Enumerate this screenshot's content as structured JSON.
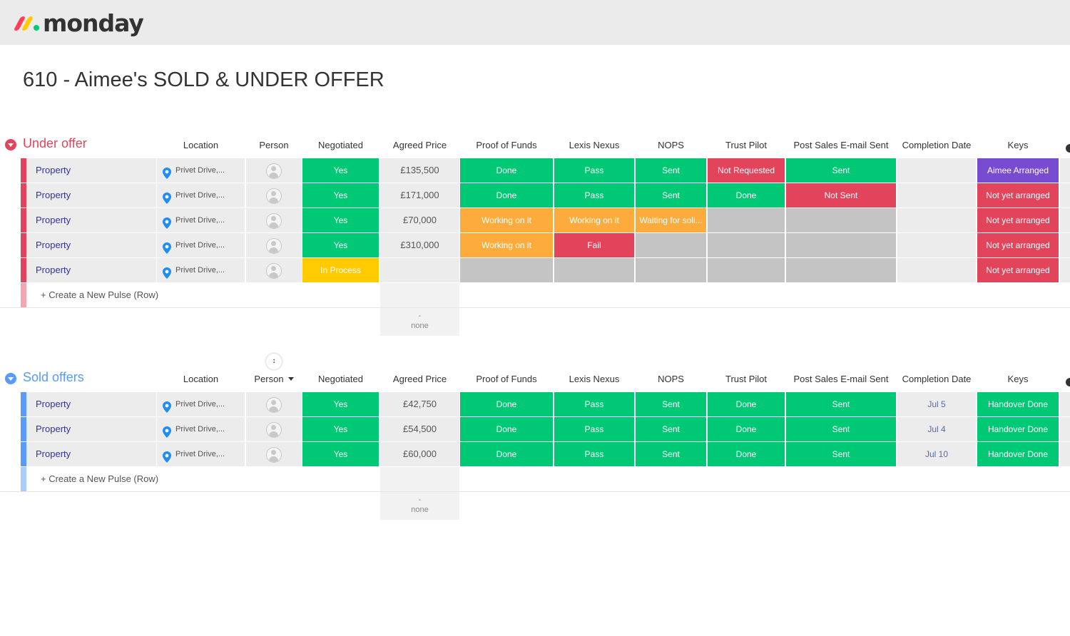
{
  "brand": {
    "name": "monday",
    "logo_colors": [
      "#ff3d57",
      "#ffcb00",
      "#00ca72"
    ]
  },
  "page_title": "610 - Aimee's SOLD & UNDER OFFER",
  "colors": {
    "green": "#00c875",
    "orange": "#fdab3d",
    "red": "#e2445c",
    "grey": "#c4c4c4",
    "yellow": "#ffcb00",
    "purple": "#784bd1",
    "under_offer_accent": "#e2445c",
    "sold_offers_accent": "#579bfc"
  },
  "columns": {
    "location": "Location",
    "person": "Person",
    "negotiated": "Negotiated",
    "agreed_price": "Agreed Price",
    "proof_of_funds": "Proof of Funds",
    "lexis_nexus": "Lexis Nexus",
    "nops": "NOPS",
    "trust_pilot": "Trust Pilot",
    "post_sales": "Post Sales E-mail Sent",
    "completion_date": "Completion Date",
    "keys": "Keys"
  },
  "groups": [
    {
      "name": "Under offer",
      "accent": "#e2445c",
      "add_row_color": "#f3a6b2",
      "add_row_label": "+ Create a New Pulse (Row)",
      "summary": {
        "dash": "-",
        "label": "none"
      },
      "rows": [
        {
          "name": "Property",
          "location": "Privet Drive,...",
          "negotiated": {
            "text": "Yes",
            "color": "green"
          },
          "price": "£135,500",
          "pof": {
            "text": "Done",
            "color": "green"
          },
          "lexis": {
            "text": "Pass",
            "color": "green"
          },
          "nops": {
            "text": "Sent",
            "color": "green"
          },
          "trust": {
            "text": "Not Requested",
            "color": "red"
          },
          "post": {
            "text": "Sent",
            "color": "green"
          },
          "completion": "",
          "keys": {
            "text": "Aimee Arranged",
            "color": "purple"
          }
        },
        {
          "name": "Property",
          "location": "Privet Drive,...",
          "negotiated": {
            "text": "Yes",
            "color": "green"
          },
          "price": "£171,000",
          "pof": {
            "text": "Done",
            "color": "green"
          },
          "lexis": {
            "text": "Pass",
            "color": "green"
          },
          "nops": {
            "text": "Sent",
            "color": "green"
          },
          "trust": {
            "text": "Done",
            "color": "green"
          },
          "post": {
            "text": "Not Sent",
            "color": "red"
          },
          "completion": "",
          "keys": {
            "text": "Not yet arranged",
            "color": "red"
          }
        },
        {
          "name": "Property",
          "location": "Privet Drive,...",
          "negotiated": {
            "text": "Yes",
            "color": "green"
          },
          "price": "£70,000",
          "pof": {
            "text": "Working on it",
            "color": "orange"
          },
          "lexis": {
            "text": "Working on it",
            "color": "orange"
          },
          "nops": {
            "text": "Waiting for soli...",
            "color": "orange"
          },
          "trust": {
            "text": "",
            "color": "grey"
          },
          "post": {
            "text": "",
            "color": "grey"
          },
          "completion": "",
          "keys": {
            "text": "Not yet arranged",
            "color": "red"
          }
        },
        {
          "name": "Property",
          "location": "Privet Drive,...",
          "negotiated": {
            "text": "Yes",
            "color": "green"
          },
          "price": "£310,000",
          "pof": {
            "text": "Working on it",
            "color": "orange"
          },
          "lexis": {
            "text": "Fail",
            "color": "red"
          },
          "nops": {
            "text": "",
            "color": "grey"
          },
          "trust": {
            "text": "",
            "color": "grey"
          },
          "post": {
            "text": "",
            "color": "grey"
          },
          "completion": "",
          "keys": {
            "text": "Not yet arranged",
            "color": "red"
          }
        },
        {
          "name": "Property",
          "location": "Privet Drive,...",
          "negotiated": {
            "text": "In Process",
            "color": "yellow"
          },
          "price": "",
          "pof": {
            "text": "",
            "color": "grey"
          },
          "lexis": {
            "text": "",
            "color": "grey"
          },
          "nops": {
            "text": "",
            "color": "grey"
          },
          "trust": {
            "text": "",
            "color": "grey"
          },
          "post": {
            "text": "",
            "color": "grey"
          },
          "completion": "",
          "keys": {
            "text": "Not yet arranged",
            "color": "red"
          }
        }
      ]
    },
    {
      "name": "Sold offers",
      "accent": "#579bfc",
      "add_row_color": "#aacbfb",
      "add_row_label": "+ Create a New Pulse (Row)",
      "summary": {
        "dash": "-",
        "label": "none"
      },
      "rows": [
        {
          "name": "Property",
          "location": "Privet Drive,...",
          "negotiated": {
            "text": "Yes",
            "color": "green"
          },
          "price": "£42,750",
          "pof": {
            "text": "Done",
            "color": "green"
          },
          "lexis": {
            "text": "Pass",
            "color": "green"
          },
          "nops": {
            "text": "Sent",
            "color": "green"
          },
          "trust": {
            "text": "Done",
            "color": "green"
          },
          "post": {
            "text": "Sent",
            "color": "green"
          },
          "completion": "Jul 5",
          "keys": {
            "text": "Handover Done",
            "color": "green"
          }
        },
        {
          "name": "Property",
          "location": "Privet Drive,...",
          "negotiated": {
            "text": "Yes",
            "color": "green"
          },
          "price": "£54,500",
          "pof": {
            "text": "Done",
            "color": "green"
          },
          "lexis": {
            "text": "Pass",
            "color": "green"
          },
          "nops": {
            "text": "Sent",
            "color": "green"
          },
          "trust": {
            "text": "Done",
            "color": "green"
          },
          "post": {
            "text": "Sent",
            "color": "green"
          },
          "completion": "Jul 4",
          "keys": {
            "text": "Handover Done",
            "color": "green"
          }
        },
        {
          "name": "Property",
          "location": "Privet Drive,...",
          "negotiated": {
            "text": "Yes",
            "color": "green"
          },
          "price": "£60,000",
          "pof": {
            "text": "Done",
            "color": "green"
          },
          "lexis": {
            "text": "Pass",
            "color": "green"
          },
          "nops": {
            "text": "Sent",
            "color": "green"
          },
          "trust": {
            "text": "Done",
            "color": "green"
          },
          "post": {
            "text": "Sent",
            "color": "green"
          },
          "completion": "Jul 10",
          "keys": {
            "text": "Handover Done",
            "color": "green"
          }
        }
      ]
    }
  ]
}
